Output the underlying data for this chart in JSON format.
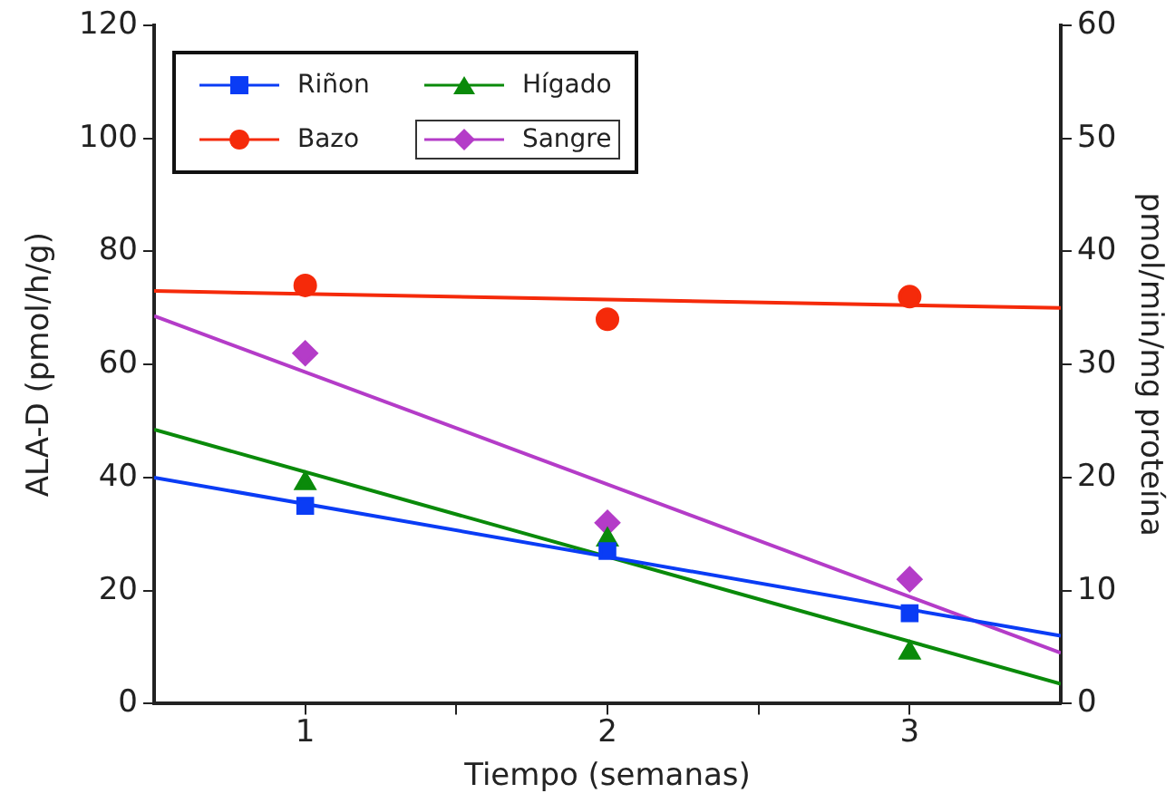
{
  "chart_data": {
    "type": "scatter",
    "xlabel": "Tiempo (semanas)",
    "ylabel": "ALA-D (pmol/h/g)",
    "y2label": "pmol/min/mg proteína",
    "xlim": [
      0.5,
      3.5
    ],
    "xticks": [
      1,
      {
        "value": 1.5,
        "label": null
      },
      2,
      {
        "value": 2.5,
        "label": null
      },
      3
    ],
    "ylim": [
      0,
      120
    ],
    "yticks": [
      0,
      20,
      40,
      60,
      80,
      100,
      120
    ],
    "y2lim": [
      0,
      60
    ],
    "y2ticks": [
      0,
      10,
      20,
      30,
      40,
      50,
      60
    ],
    "grid": false,
    "legend": "top left",
    "series": [
      {
        "name": "Riñon",
        "color": "#0a3cf5",
        "marker": "square",
        "x": [
          1,
          2,
          3
        ],
        "values": [
          35,
          27,
          16
        ]
      },
      {
        "name": "Hígado",
        "color": "#0a8a0a",
        "marker": "triangle",
        "x": [
          1,
          2,
          3
        ],
        "values": [
          39,
          29,
          9
        ]
      },
      {
        "name": "Bazo",
        "color": "#f52a0a",
        "marker": "circle",
        "x": [
          1,
          2,
          3
        ],
        "values": [
          74,
          68,
          72
        ]
      },
      {
        "name": "Sangre",
        "color": "#b43cc8",
        "marker": "diamond",
        "axis": "y2",
        "x": [
          1,
          2,
          3
        ],
        "values": [
          31,
          16,
          11
        ]
      },
      {
        "type": "line",
        "color": "#0a3cf5",
        "marker": "none",
        "x": [
          0.5,
          3.5
        ],
        "values": [
          40,
          12
        ]
      },
      {
        "type": "line",
        "color": "#0a8a0a",
        "marker": "none",
        "x": [
          0.5,
          3.5
        ],
        "values": [
          48.5,
          3.5
        ]
      },
      {
        "type": "line",
        "color": "#f52a0a",
        "marker": "none",
        "x": [
          0.5,
          3.5
        ],
        "values": [
          73,
          70
        ]
      },
      {
        "type": "line",
        "color": "#b43cc8",
        "marker": "none",
        "axis": "y2",
        "x": [
          0.5,
          3.5
        ],
        "values": [
          34.3,
          4.5
        ]
      }
    ]
  }
}
